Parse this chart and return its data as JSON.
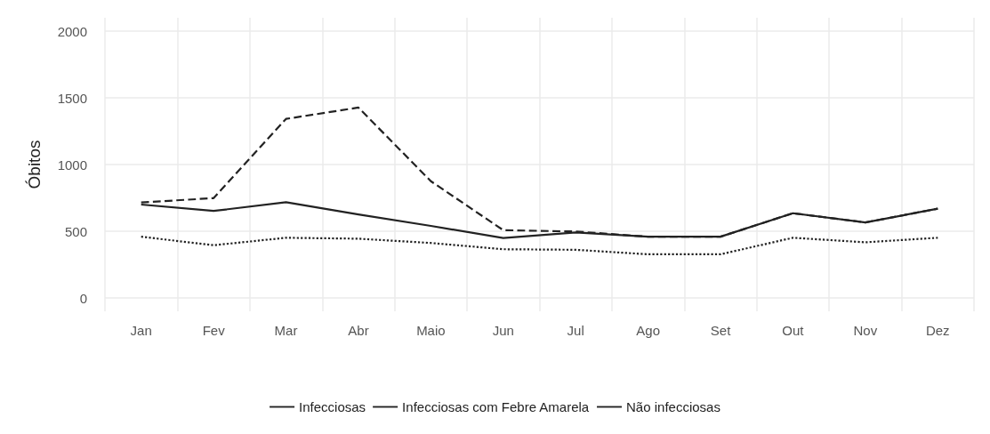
{
  "chart_data": {
    "type": "line",
    "ylabel": "Óbitos",
    "categories": [
      "Jan",
      "Fev",
      "Mar",
      "Abr",
      "Maio",
      "Jun",
      "Jul",
      "Ago",
      "Set",
      "Out",
      "Nov",
      "Dez"
    ],
    "series": [
      {
        "name": "Infecciosas",
        "color": "#222222",
        "line_style": "solid",
        "values": [
          700,
          652,
          718,
          626,
          540,
          449,
          491,
          459,
          459,
          635,
          566,
          669
        ]
      },
      {
        "name": "Infecciosas com Febre Amarela",
        "color": "#222222",
        "line_style": "dashed",
        "values": [
          716,
          748,
          1342,
          1427,
          875,
          508,
          498,
          459,
          459,
          635,
          566,
          669
        ]
      },
      {
        "name": "Não infecciosas",
        "color": "#222222",
        "line_style": "dotted",
        "values": [
          459,
          395,
          451,
          444,
          412,
          365,
          361,
          327,
          327,
          451,
          417,
          451
        ]
      }
    ],
    "ylim": [
      -100,
      2100
    ],
    "yticks": [
      0,
      500,
      1000,
      1500,
      2000
    ],
    "grid": true,
    "legend": "bottom",
    "marker": "none"
  }
}
